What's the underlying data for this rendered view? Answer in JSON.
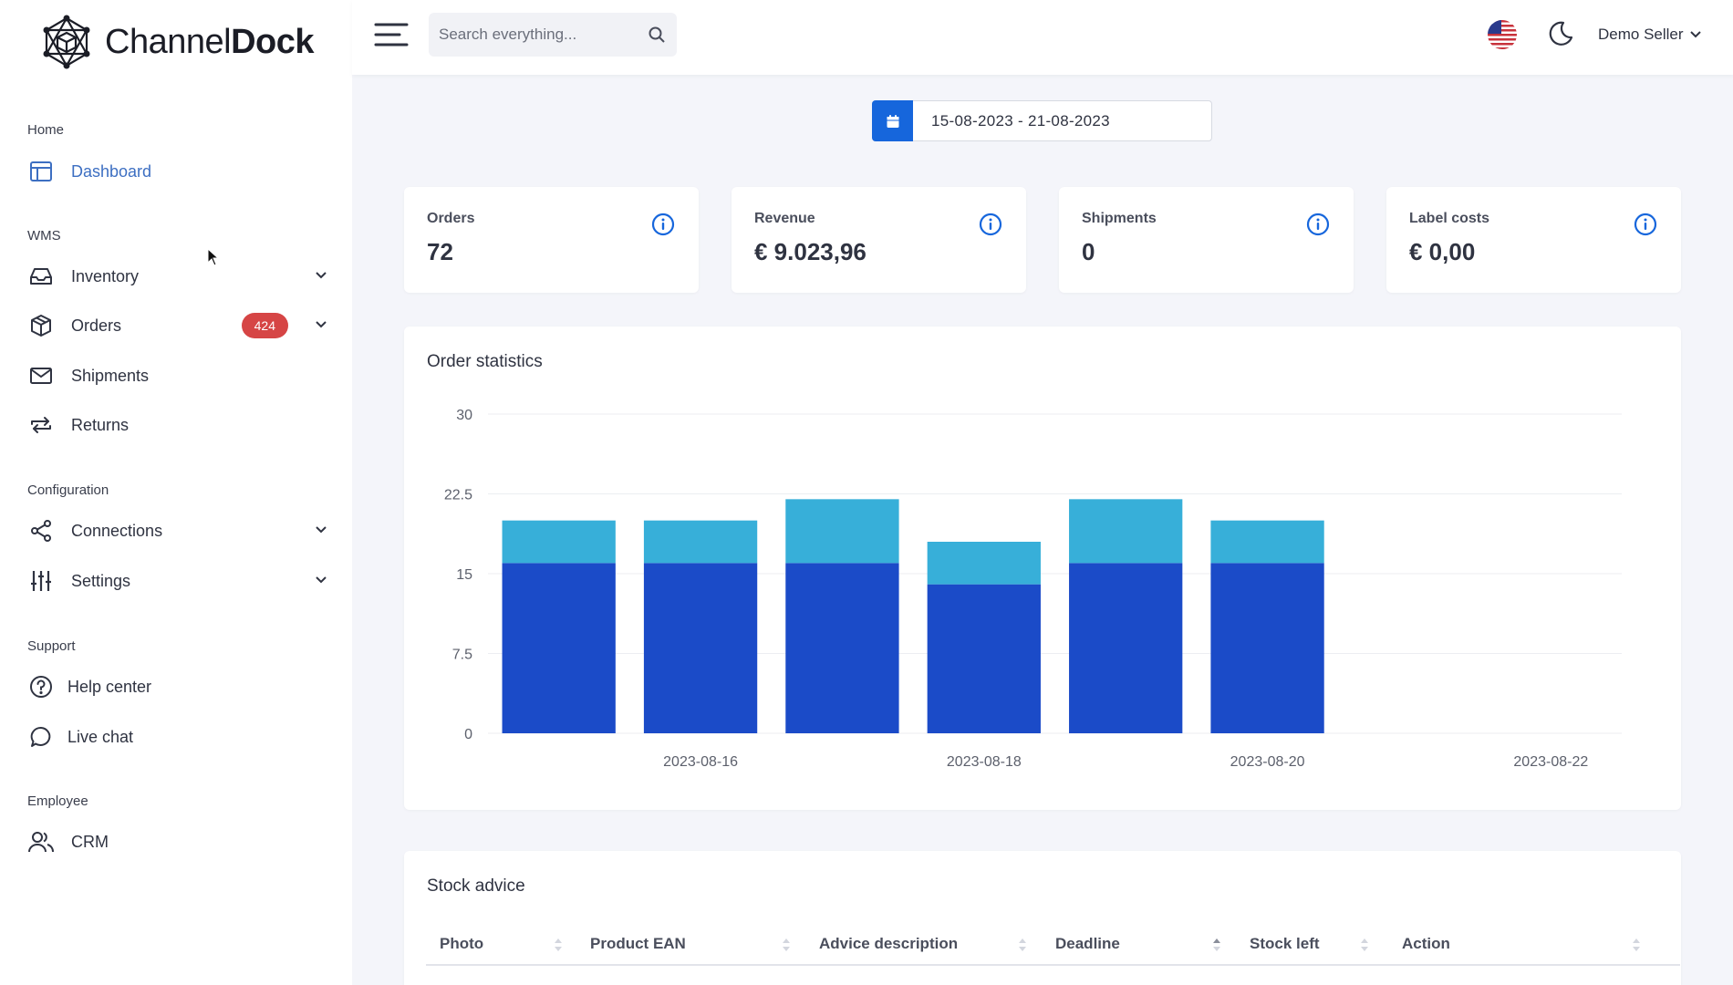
{
  "brand": {
    "name_light": "Channel",
    "name_bold": "Dock"
  },
  "sidebar": {
    "sections": {
      "home": "Home",
      "wms": "WMS",
      "configuration": "Configuration",
      "support": "Support",
      "employee": "Employee"
    },
    "items": {
      "dashboard": "Dashboard",
      "inventory": "Inventory",
      "orders": "Orders",
      "orders_badge": "424",
      "shipments": "Shipments",
      "returns": "Returns",
      "connections": "Connections",
      "settings": "Settings",
      "help_center": "Help center",
      "live_chat": "Live chat",
      "crm": "CRM"
    }
  },
  "header": {
    "search_placeholder": "Search everything...",
    "user_name": "Demo Seller"
  },
  "date_range": "15-08-2023 - 21-08-2023",
  "stats": [
    {
      "label": "Orders",
      "value": "72"
    },
    {
      "label": "Revenue",
      "value": "€ 9.023,96"
    },
    {
      "label": "Shipments",
      "value": "0"
    },
    {
      "label": "Label costs",
      "value": "€ 0,00"
    }
  ],
  "order_statistics": {
    "title": "Order statistics"
  },
  "chart_data": {
    "type": "bar",
    "stacked": true,
    "categories": [
      "2023-08-15",
      "2023-08-16",
      "2023-08-17",
      "2023-08-18",
      "2023-08-19",
      "2023-08-20",
      "2023-08-21",
      "2023-08-22"
    ],
    "series": [
      {
        "values": [
          16,
          16,
          16,
          14,
          16,
          16,
          0,
          0
        ],
        "color": "#1b4bc8"
      },
      {
        "values": [
          4,
          4,
          6,
          4,
          6,
          4,
          0,
          0
        ],
        "color": "#37afd9"
      }
    ],
    "y_ticks": [
      "0",
      "7.5",
      "15",
      "22.5",
      "30"
    ],
    "x_tick_labels": [
      "2023-08-16",
      "2023-08-18",
      "2023-08-20",
      "2023-08-22"
    ],
    "ylim": [
      0,
      30
    ],
    "grid": true
  },
  "stock_advice": {
    "title": "Stock advice",
    "columns": [
      "Photo",
      "Product EAN",
      "Advice description",
      "Deadline",
      "Stock left",
      "Action"
    ]
  },
  "colors": {
    "accent": "#1666dc",
    "badge": "#d64545",
    "active_nav": "#3d6fc2"
  }
}
